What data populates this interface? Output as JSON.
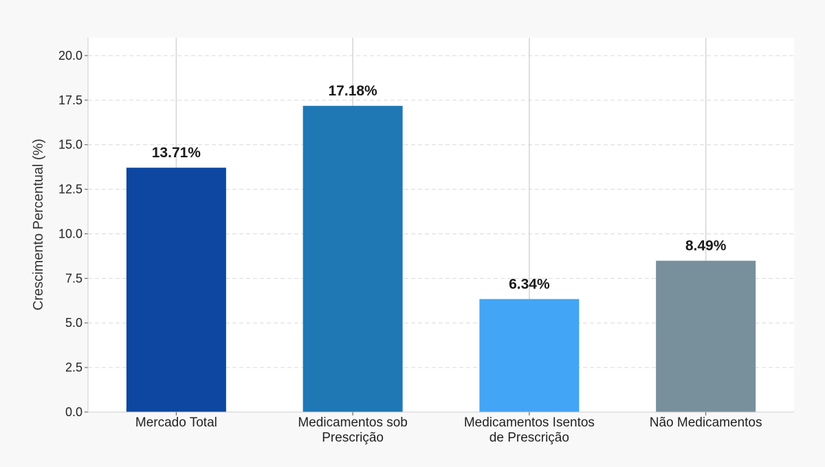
{
  "chart_data": {
    "type": "bar",
    "title": "",
    "xlabel": "",
    "ylabel": "Crescimento Percentual (%)",
    "ylim": [
      0,
      21
    ],
    "yticks": [
      "0.0",
      "2.5",
      "5.0",
      "7.5",
      "10.0",
      "12.5",
      "15.0",
      "17.5",
      "20.0"
    ],
    "categories": [
      [
        "Mercado Total"
      ],
      [
        "Medicamentos sob",
        "Prescrição"
      ],
      [
        "Medicamentos Isentos",
        "de Prescrição"
      ],
      [
        "Não Medicamentos"
      ]
    ],
    "values": [
      13.71,
      17.18,
      6.34,
      8.49
    ],
    "data_labels": [
      "13.71%",
      "17.18%",
      "6.34%",
      "8.49%"
    ],
    "colors": [
      "#0d47a1",
      "#1f77b4",
      "#42a5f5",
      "#78909c"
    ],
    "grid": true,
    "legend": "none"
  }
}
